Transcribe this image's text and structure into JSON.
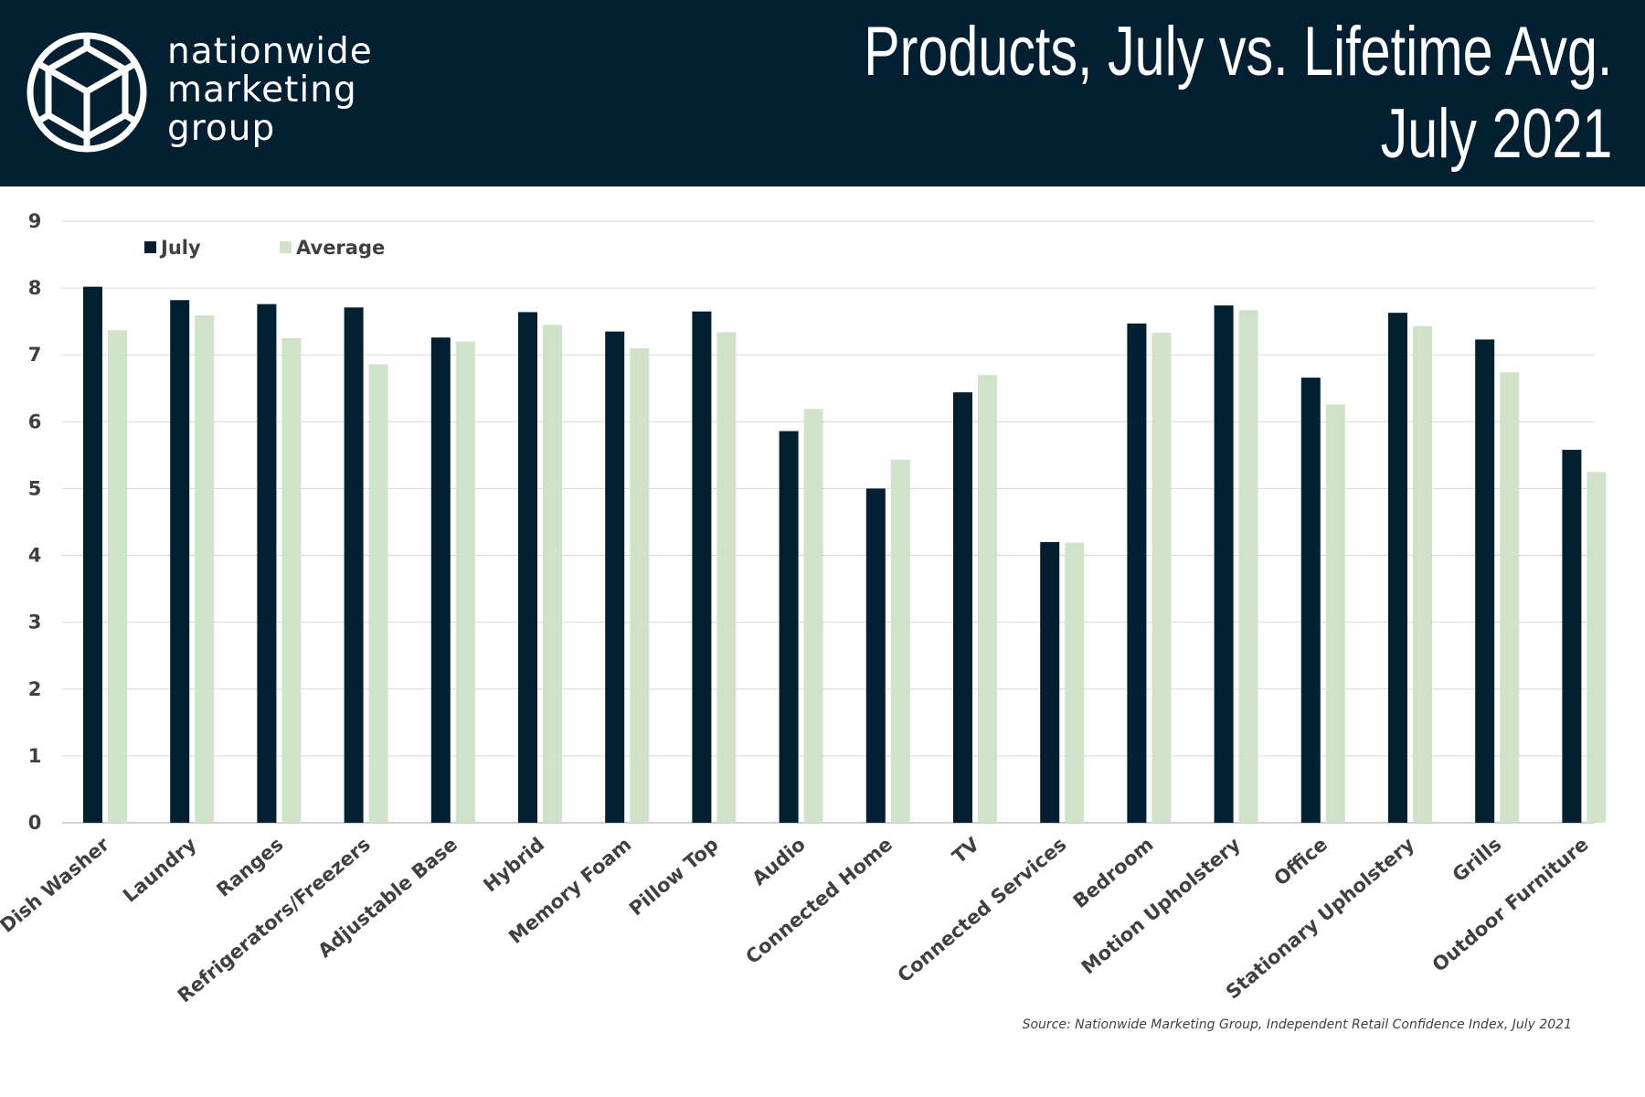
{
  "header": {
    "logo_lines": [
      "nationwide",
      "marketing",
      "group"
    ],
    "title_line1": "Products, July vs. Lifetime Avg.",
    "title_line2": "July 2021"
  },
  "colors": {
    "header_bg": "#032033",
    "july": "#032033",
    "average": "#d0e3c9",
    "grid": "#d9d9d9"
  },
  "chart_data": {
    "type": "bar",
    "title": "Products, July vs. Lifetime Avg.",
    "subtitle": "July 2021",
    "xlabel": "",
    "ylabel": "",
    "ylim": [
      0,
      9
    ],
    "yticks": [
      0,
      1,
      2,
      3,
      4,
      5,
      6,
      7,
      8,
      9
    ],
    "grid": true,
    "legend_position": "top-left",
    "categories": [
      "Dish Washer",
      "Laundry",
      "Ranges",
      "Refrigerators/Freezers",
      "Adjustable Base",
      "Hybrid",
      "Memory Foam",
      "Pillow Top",
      "Audio",
      "Connected Home",
      "TV",
      "Connected Services",
      "Bedroom",
      "Motion Upholstery",
      "Office",
      "Stationary Upholstery",
      "Grills",
      "Outdoor Furniture"
    ],
    "series": [
      {
        "name": "July",
        "color": "#032033",
        "values": [
          8.02,
          7.82,
          7.76,
          7.71,
          7.26,
          7.64,
          7.35,
          7.65,
          5.86,
          5.0,
          6.44,
          4.2,
          7.47,
          7.74,
          6.66,
          7.63,
          7.23,
          5.58
        ]
      },
      {
        "name": "Average",
        "color": "#d0e3c9",
        "values": [
          7.37,
          7.59,
          7.25,
          6.86,
          7.2,
          7.45,
          7.1,
          7.34,
          6.19,
          5.43,
          6.7,
          4.19,
          7.33,
          7.67,
          6.26,
          7.43,
          6.74,
          5.25
        ]
      }
    ]
  },
  "source": "Source: Nationwide Marketing Group, Independent Retail Confidence Index, July 2021"
}
